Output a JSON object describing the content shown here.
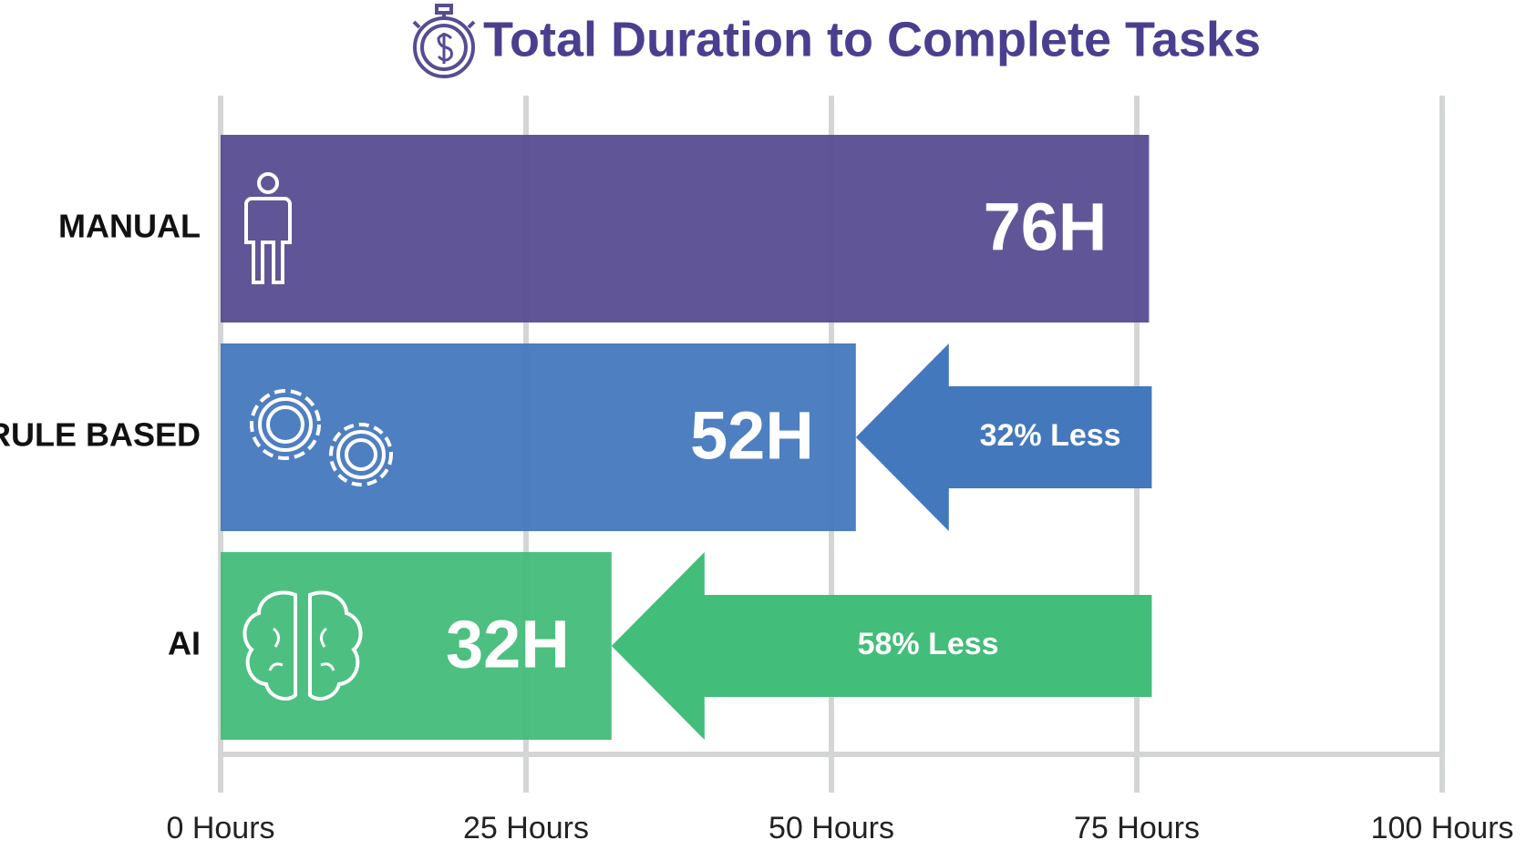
{
  "chart_data": {
    "type": "hbar",
    "title": "Total Duration to Complete Tasks",
    "categories": [
      "MANUAL",
      "RULE BASED",
      "AI"
    ],
    "values": [
      76,
      52,
      32
    ],
    "value_labels": [
      "76H",
      "52H",
      "32H"
    ],
    "colors": [
      "#574d91",
      "#4478bd",
      "#43bd7a"
    ],
    "annotations": [
      null,
      "32% Less",
      "58% Less"
    ],
    "xlim": [
      0,
      100
    ],
    "xticks": [
      {
        "value": 0,
        "label": "0 Hours"
      },
      {
        "value": 25,
        "label": "25 Hours"
      },
      {
        "value": 50,
        "label": "50 Hours"
      },
      {
        "value": 75,
        "label": "75 Hours"
      },
      {
        "value": 100,
        "label": "100 Hours"
      }
    ],
    "grid": true
  }
}
